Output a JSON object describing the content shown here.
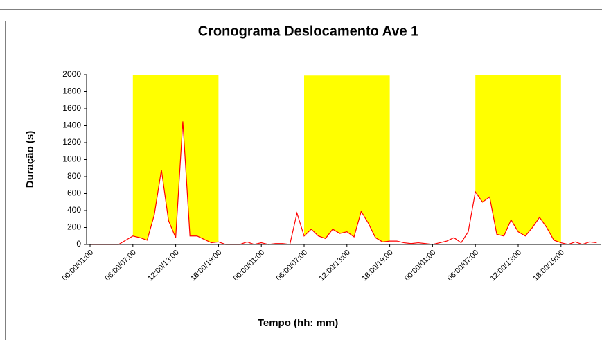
{
  "chart_data": {
    "type": "area",
    "title": "Cronograma Deslocamento Ave 1",
    "y_label": "Duração (s)",
    "x_label": "Tempo (hh: mm)",
    "categories": [
      "00:00/01:00",
      null,
      null,
      null,
      null,
      null,
      "06:00/07:00",
      null,
      null,
      null,
      null,
      null,
      "12:00/13:00",
      null,
      null,
      null,
      null,
      null,
      "18:00/19:00",
      null,
      null,
      null,
      null,
      null,
      "00:00/01:00",
      null,
      null,
      null,
      null,
      null,
      "06:00/07:00",
      null,
      null,
      null,
      null,
      null,
      "12:00/13:00",
      null,
      null,
      null,
      null,
      null,
      "18:00/19:00",
      null,
      null,
      null,
      null,
      null,
      "00:00/01:00",
      null,
      null,
      null,
      null,
      null,
      "06:00/07:00",
      null,
      null,
      null,
      null,
      null,
      "12:00/13:00",
      null,
      null,
      null,
      null,
      null,
      "18:00/19:00",
      null,
      null,
      null,
      null,
      null
    ],
    "series": [
      {
        "color": "#ffff00",
        "values": [
          null,
          null,
          null,
          null,
          null,
          null,
          2000,
          2000,
          2000,
          2000,
          2000,
          2000,
          2000,
          2000,
          2000,
          2000,
          2000,
          2000,
          2000,
          null,
          null,
          null,
          null,
          null,
          null,
          null,
          null,
          null,
          null,
          null,
          1990,
          1990,
          1990,
          1990,
          1990,
          1990,
          1990,
          1990,
          1990,
          1990,
          1990,
          1990,
          1990,
          null,
          null,
          null,
          null,
          null,
          null,
          null,
          null,
          null,
          null,
          null,
          2000,
          2000,
          2000,
          2000,
          2000,
          2000,
          2000,
          2000,
          2000,
          2000,
          2000,
          2000,
          2000,
          null,
          null,
          null,
          null,
          null
        ]
      },
      {
        "color": "#ff0000",
        "fill": "#ffffff",
        "values": [
          0,
          0,
          0,
          0,
          0,
          50,
          100,
          80,
          50,
          350,
          880,
          280,
          80,
          1450,
          100,
          100,
          60,
          20,
          30,
          0,
          0,
          0,
          30,
          0,
          20,
          0,
          10,
          10,
          0,
          370,
          100,
          180,
          100,
          70,
          180,
          130,
          150,
          90,
          390,
          250,
          80,
          30,
          40,
          40,
          20,
          10,
          20,
          10,
          0,
          20,
          40,
          80,
          20,
          150,
          620,
          500,
          560,
          120,
          100,
          290,
          150,
          100,
          200,
          320,
          200,
          50,
          20,
          0,
          30,
          0,
          30,
          20
        ]
      }
    ],
    "ylim": [
      0,
      2000
    ],
    "yticks": [
      0,
      200,
      400,
      600,
      800,
      1000,
      1200,
      1400,
      1600,
      1800,
      2000
    ],
    "grid": false
  }
}
